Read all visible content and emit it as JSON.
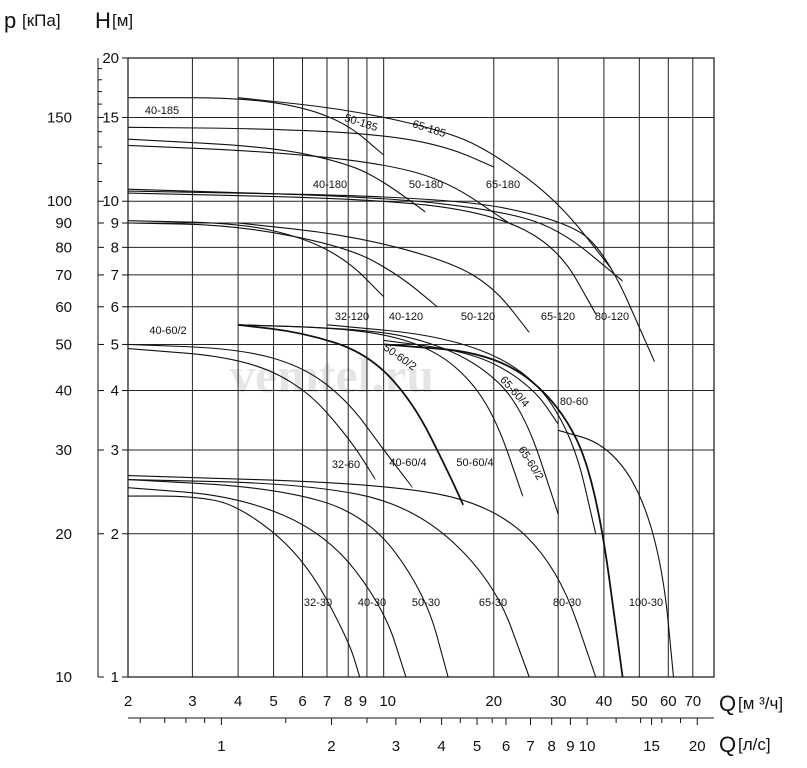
{
  "chart_data": {
    "type": "line",
    "x_axis": {
      "label": "Q",
      "unit": "[м ³/ч]",
      "scale": "log",
      "range": [
        2,
        80
      ],
      "ticks": [
        "2",
        "3",
        "4",
        "5",
        "6",
        "7",
        "8",
        "9",
        "10",
        "20",
        "30",
        "40",
        "50",
        "60",
        "70"
      ]
    },
    "x2_axis": {
      "label": "Q",
      "unit": "[л/с]",
      "scale": "log",
      "ticks": [
        "1",
        "2",
        "3",
        "4",
        "5",
        "6",
        "7",
        "8",
        "9",
        "10",
        "15",
        "20"
      ]
    },
    "y_axis": {
      "label": "H",
      "unit": "[м]",
      "scale": "log",
      "range": [
        1,
        20
      ],
      "ticks": [
        "1",
        "2",
        "3",
        "4",
        "5",
        "6",
        "7",
        "8",
        "9",
        "10",
        "15",
        "20"
      ]
    },
    "y2_axis": {
      "label": "p",
      "unit": "[кПа]",
      "scale": "log",
      "ticks": [
        "10",
        "20",
        "30",
        "40",
        "50",
        "60",
        "70",
        "80",
        "90",
        "100",
        "150"
      ]
    },
    "watermark": "vemtel.ru",
    "grid": true,
    "series": [
      {
        "name": "40-185",
        "points": [
          [
            2,
            16.5
          ],
          [
            4,
            16.5
          ],
          [
            6,
            15.8
          ],
          [
            8,
            14.5
          ],
          [
            10,
            12.5
          ]
        ]
      },
      {
        "name": "50-185",
        "points": [
          [
            2,
            14.3
          ],
          [
            5,
            14.2
          ],
          [
            10,
            13.8
          ],
          [
            15,
            13.0
          ],
          [
            20,
            11.8
          ]
        ]
      },
      {
        "name": "65-185",
        "points": [
          [
            4,
            16.5
          ],
          [
            8,
            15.6
          ],
          [
            15,
            14.0
          ],
          [
            20,
            12.6
          ],
          [
            30,
            10.0
          ],
          [
            42,
            7.2
          ]
        ]
      },
      {
        "name": "40-180",
        "points": [
          [
            2,
            13.5
          ],
          [
            5,
            13.0
          ],
          [
            8,
            12.0
          ],
          [
            10,
            11.0
          ],
          [
            13,
            9.5
          ]
        ]
      },
      {
        "name": "50-180",
        "points": [
          [
            2,
            13.1
          ],
          [
            5,
            12.7
          ],
          [
            10,
            12.0
          ],
          [
            15,
            11.0
          ],
          [
            22,
            9.0
          ]
        ]
      },
      {
        "name": "65-180",
        "points": [
          [
            2,
            10.6
          ],
          [
            10,
            10.2
          ],
          [
            20,
            9.6
          ],
          [
            30,
            8.8
          ],
          [
            45,
            6.8
          ]
        ]
      },
      {
        "name": "32-120",
        "points": [
          [
            2,
            9.1
          ],
          [
            4,
            9.0
          ],
          [
            6,
            8.4
          ],
          [
            8,
            7.5
          ],
          [
            10,
            6.3
          ]
        ]
      },
      {
        "name": "40-120",
        "points": [
          [
            2,
            9.0
          ],
          [
            4,
            8.9
          ],
          [
            8,
            8.0
          ],
          [
            11,
            7.0
          ],
          [
            14,
            6.0
          ]
        ]
      },
      {
        "name": "50-120",
        "points": [
          [
            4,
            9.0
          ],
          [
            8,
            8.5
          ],
          [
            15,
            7.5
          ],
          [
            20,
            6.6
          ],
          [
            25,
            5.3
          ]
        ]
      },
      {
        "name": "65-120",
        "points": [
          [
            2,
            10.4
          ],
          [
            10,
            10.1
          ],
          [
            20,
            9.4
          ],
          [
            30,
            8.0
          ],
          [
            38,
            5.8
          ]
        ]
      },
      {
        "name": "80-120",
        "points": [
          [
            2,
            10.5
          ],
          [
            15,
            10.2
          ],
          [
            30,
            9.2
          ],
          [
            40,
            8.0
          ],
          [
            55,
            4.6
          ]
        ]
      },
      {
        "name": "40-60/2",
        "points": [
          [
            2,
            5.0
          ],
          [
            4,
            4.9
          ],
          [
            6,
            4.5
          ],
          [
            8,
            3.8
          ],
          [
            10,
            3.0
          ],
          [
            12,
            2.5
          ]
        ]
      },
      {
        "name": "32-60",
        "points": [
          [
            2,
            4.9
          ],
          [
            4,
            4.7
          ],
          [
            6,
            4.1
          ],
          [
            8,
            3.2
          ],
          [
            9.5,
            2.6
          ]
        ]
      },
      {
        "name": "40-60/4",
        "points": [
          [
            4,
            5.5
          ],
          [
            6,
            5.3
          ],
          [
            9,
            4.8
          ],
          [
            12,
            3.8
          ],
          [
            15,
            2.7
          ],
          [
            16.5,
            2.3
          ]
        ]
      },
      {
        "name": "50-60/2",
        "points": [
          [
            4,
            5.5
          ],
          [
            8,
            5.4
          ],
          [
            12,
            5.1
          ],
          [
            16,
            4.5
          ],
          [
            20,
            3.6
          ],
          [
            24,
            2.4
          ]
        ]
      },
      {
        "name": "50-60/4",
        "points": [
          [
            4,
            5.5
          ],
          [
            8,
            5.4
          ],
          [
            12,
            5.2
          ],
          [
            18,
            4.6
          ],
          [
            24,
            3.7
          ],
          [
            30,
            2.2
          ]
        ]
      },
      {
        "name": "65-60/4",
        "points": [
          [
            10,
            5.1
          ],
          [
            15,
            4.9
          ],
          [
            20,
            4.6
          ],
          [
            26,
            4.0
          ],
          [
            30,
            3.4
          ]
        ]
      },
      {
        "name": "65-60/2",
        "points": [
          [
            7,
            5.5
          ],
          [
            15,
            5.2
          ],
          [
            25,
            4.4
          ],
          [
            33,
            3.2
          ],
          [
            38,
            2.0
          ]
        ]
      },
      {
        "name": "80-60",
        "points": [
          [
            10,
            5.0
          ],
          [
            20,
            4.8
          ],
          [
            30,
            3.8
          ],
          [
            38,
            2.6
          ],
          [
            45,
            1.0
          ]
        ]
      },
      {
        "name": "32-30",
        "points": [
          [
            2,
            2.4
          ],
          [
            3,
            2.4
          ],
          [
            4,
            2.3
          ],
          [
            6,
            1.8
          ],
          [
            8,
            1.2
          ],
          [
            8.6,
            1.0
          ]
        ]
      },
      {
        "name": "40-30",
        "points": [
          [
            2,
            2.5
          ],
          [
            4,
            2.4
          ],
          [
            7,
            2.0
          ],
          [
            10,
            1.4
          ],
          [
            11.5,
            1.0
          ]
        ]
      },
      {
        "name": "50-30",
        "points": [
          [
            2,
            2.6
          ],
          [
            5,
            2.5
          ],
          [
            9,
            2.2
          ],
          [
            13,
            1.5
          ],
          [
            15,
            1.0
          ]
        ]
      },
      {
        "name": "65-30",
        "points": [
          [
            2,
            2.6
          ],
          [
            6,
            2.55
          ],
          [
            12,
            2.3
          ],
          [
            20,
            1.6
          ],
          [
            25,
            1.0
          ]
        ]
      },
      {
        "name": "80-30",
        "points": [
          [
            2,
            2.65
          ],
          [
            10,
            2.55
          ],
          [
            20,
            2.3
          ],
          [
            30,
            1.7
          ],
          [
            38,
            1.0
          ]
        ]
      },
      {
        "name": "100-30",
        "points": [
          [
            30,
            3.3
          ],
          [
            40,
            3.1
          ],
          [
            50,
            2.5
          ],
          [
            58,
            1.7
          ],
          [
            62,
            1.0
          ]
        ]
      }
    ]
  }
}
